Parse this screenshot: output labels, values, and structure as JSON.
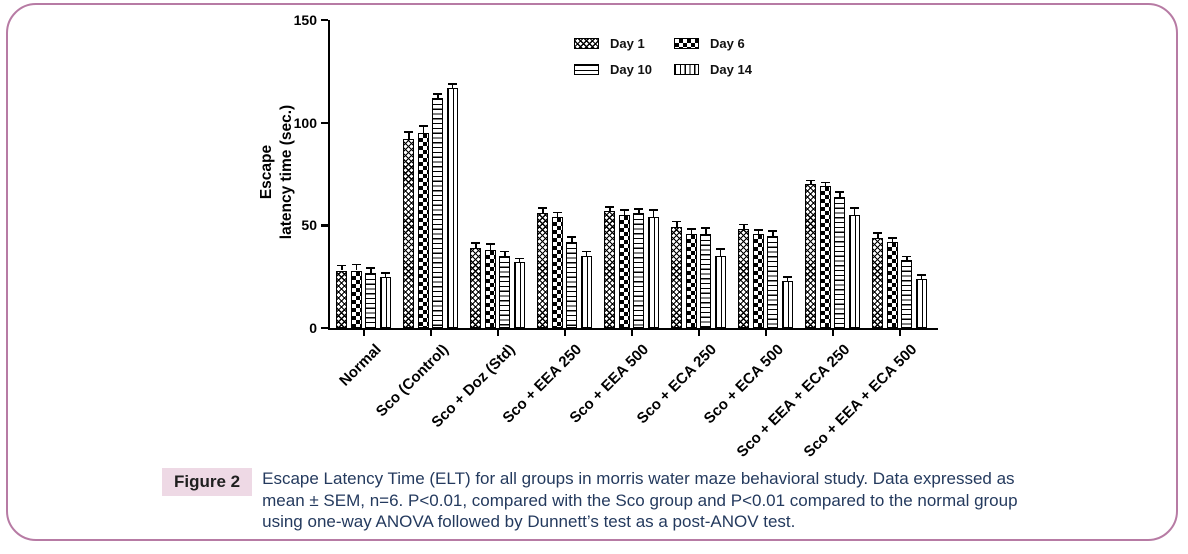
{
  "figure": {
    "caption_label": "Figure 2",
    "caption_text": "Escape Latency Time (ELT) for all groups in morris water maze behavioral study. Data expressed as mean ± SEM, n=6. P<0.01, compared with the Sco group and P<0.01 compared to the normal group using one-way ANOVA followed by Dunnett’s test as a post-ANOV test."
  },
  "colors": {
    "frame_border": "#b77ba4",
    "caption_label_bg": "#eed9e5",
    "caption_text": "#243a5e",
    "ink": "#000000"
  },
  "chart_data": {
    "type": "bar",
    "title": "",
    "xlabel": "",
    "ylabel": "Escape latency time (sec.)",
    "ylabel_lines": [
      "Escape",
      "latency time (sec.)"
    ],
    "ylim": [
      0,
      150
    ],
    "yticks": [
      0,
      50,
      100,
      150
    ],
    "grid": false,
    "legend_position": "top-center",
    "error_bars": "SEM, cap on top",
    "categories": [
      "Normal",
      "Sco (Control)",
      "Sco + Doz (Std)",
      "Sco + EEA 250",
      "Sco + EEA 500",
      "Sco + ECA 250",
      "Sco + ECA 500",
      "Sco + EEA + ECA 250",
      "Sco + EEA + ECA 500"
    ],
    "series": [
      {
        "name": "Day 1",
        "pattern": "diagonal-checker",
        "values": [
          28,
          92,
          39,
          56,
          57,
          49,
          48,
          70,
          44
        ],
        "sem": [
          2,
          3,
          2,
          2,
          1.5,
          2.5,
          2,
          1.5,
          2
        ]
      },
      {
        "name": "Day 6",
        "pattern": "checkerboard",
        "values": [
          28,
          95,
          38,
          54,
          55,
          46,
          46,
          69,
          42
        ],
        "sem": [
          2.5,
          3,
          2.5,
          2,
          2,
          2,
          1.5,
          1.5,
          1.5
        ]
      },
      {
        "name": "Day 10",
        "pattern": "horizontal-stripes",
        "values": [
          27,
          112,
          35,
          42,
          56,
          46,
          45,
          64,
          33
        ],
        "sem": [
          2,
          1.5,
          2,
          2,
          1.5,
          2.5,
          2,
          2,
          1.5
        ]
      },
      {
        "name": "Day 14",
        "pattern": "vertical-stripes",
        "values": [
          25,
          117,
          32,
          35,
          54,
          35,
          23,
          55,
          24
        ],
        "sem": [
          1.5,
          1.5,
          1.5,
          2,
          3,
          3,
          1.5,
          3,
          1.5
        ]
      }
    ]
  }
}
